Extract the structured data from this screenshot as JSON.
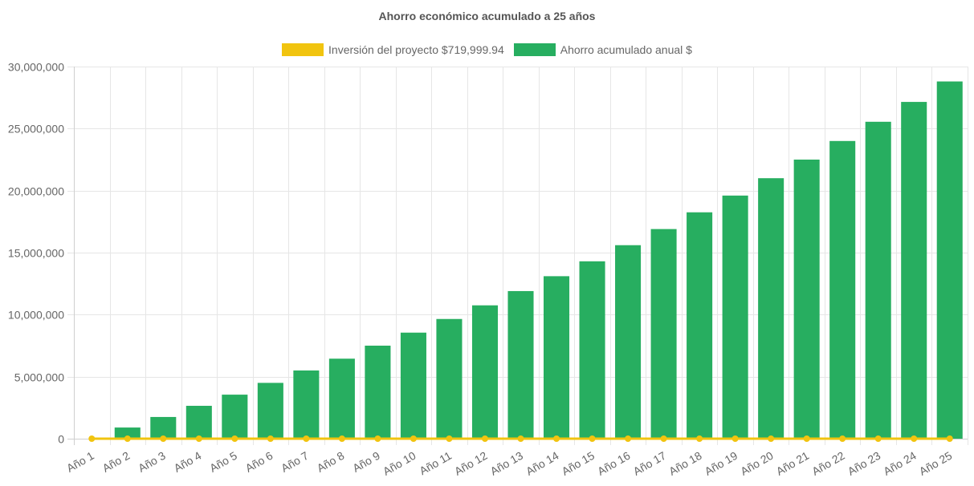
{
  "chart_data": {
    "type": "bar",
    "title": "Ahorro económico acumulado a 25 años",
    "categories": [
      "Año 1",
      "Año 2",
      "Año 3",
      "Año 4",
      "Año 5",
      "Año 6",
      "Año 7",
      "Año 8",
      "Año 9",
      "Año 10",
      "Año 11",
      "Año 12",
      "Año 13",
      "Año 14",
      "Año 15",
      "Año 16",
      "Año 17",
      "Año 18",
      "Año 19",
      "Año 20",
      "Año 21",
      "Año 22",
      "Año 23",
      "Año 24",
      "Año 25"
    ],
    "series": [
      {
        "name": "Inversión del proyecto $719,999.94",
        "kind": "line",
        "color": "#f1c40f",
        "values": [
          0,
          0,
          0,
          0,
          0,
          0,
          0,
          0,
          0,
          0,
          0,
          0,
          0,
          0,
          0,
          0,
          0,
          0,
          0,
          0,
          0,
          0,
          0,
          0,
          0
        ]
      },
      {
        "name": "Ahorro acumulado anual $",
        "kind": "bar",
        "color": "#27ae60",
        "values": [
          0,
          900000,
          1750000,
          2650000,
          3550000,
          4500000,
          5500000,
          6450000,
          7500000,
          8550000,
          9650000,
          10750000,
          11900000,
          13100000,
          14300000,
          15600000,
          16900000,
          18250000,
          19600000,
          21000000,
          22500000,
          24000000,
          25550000,
          27150000,
          28800000
        ]
      }
    ],
    "yticks": [
      "0",
      "5,000,000",
      "10,000,000",
      "15,000,000",
      "20,000,000",
      "25,000,000",
      "30,000,000"
    ],
    "ylim": [
      0,
      30000000
    ],
    "xlabel": "",
    "ylabel": "",
    "grid": true,
    "legend_position": "top",
    "grid_color": "#e6e6e6",
    "text_color": "#666666"
  }
}
